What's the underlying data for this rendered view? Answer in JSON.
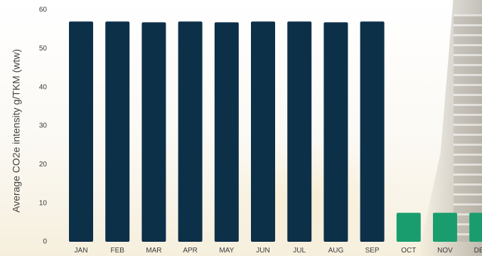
{
  "chart_data": {
    "type": "bar",
    "title": "",
    "xlabel": "",
    "ylabel": "Average CO2e intensity g/TKM (wtw)",
    "ylim": [
      0,
      60
    ],
    "yticks": [
      "0",
      "10",
      "20",
      "30",
      "40",
      "50",
      "60"
    ],
    "categories": [
      "JAN",
      "FEB",
      "MAR",
      "APR",
      "MAY",
      "JUN",
      "JUL",
      "AUG",
      "SEP",
      "OCT",
      "NOV",
      "DEC"
    ],
    "values": [
      57,
      57,
      56.8,
      57,
      56.8,
      57,
      57,
      56.8,
      57,
      7.5,
      7.5,
      7.5
    ],
    "bar_colors": [
      "#0d3049",
      "#0d3049",
      "#0d3049",
      "#0d3049",
      "#0d3049",
      "#0d3049",
      "#0d3049",
      "#0d3049",
      "#0d3049",
      "#1a9d6e",
      "#1a9d6e",
      "#1a9d6e"
    ],
    "grid": false,
    "legend": "none"
  }
}
